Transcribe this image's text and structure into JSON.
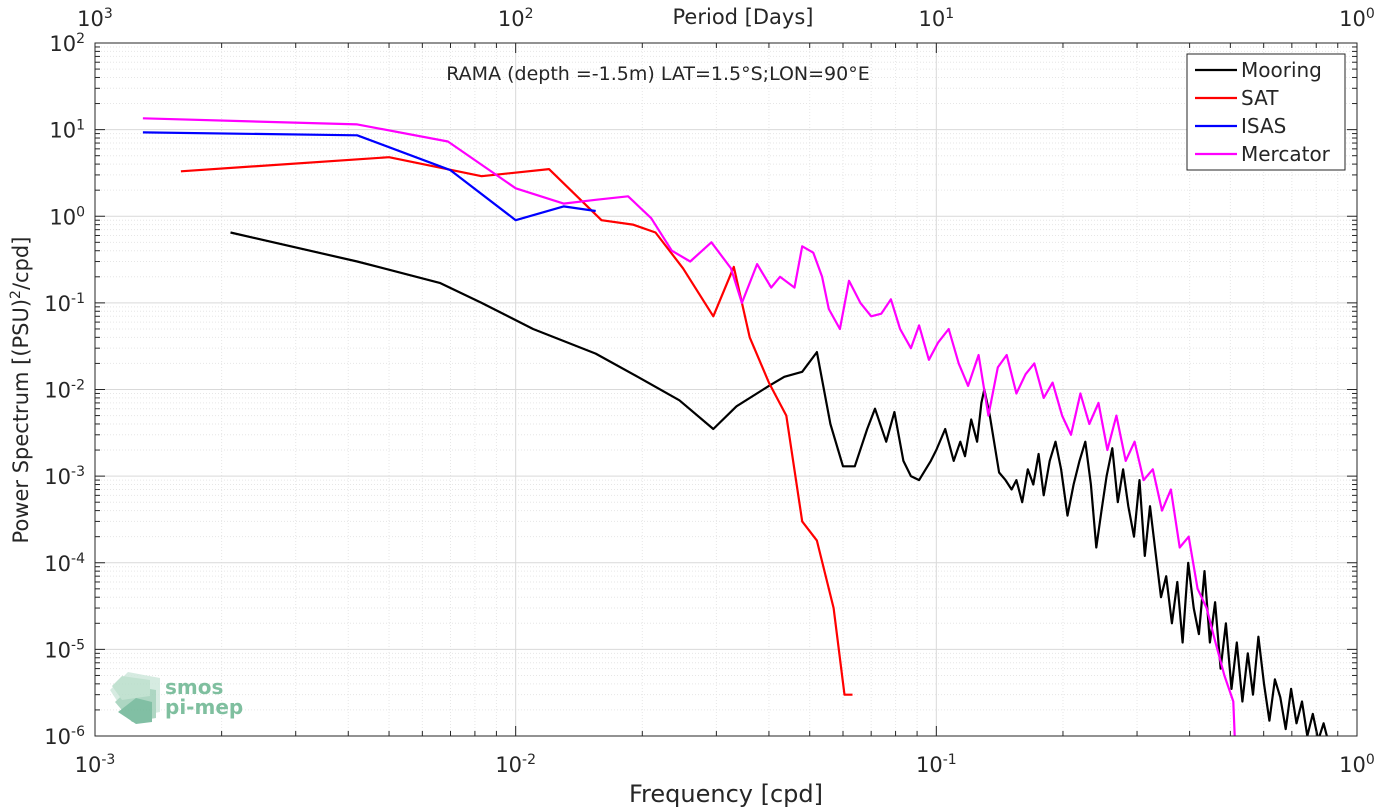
{
  "chart_data": {
    "type": "line",
    "title": "RAMA (depth =-1.5m) LAT=1.5°S;LON=90°E",
    "xlabel": "Frequency [cpd]",
    "ylabel": "Power Spectrum [(PSU)",
    "ylabel_sup": "2",
    "ylabel_suffix": "/cpd]",
    "top_xlabel": "Period [Days]",
    "xscale": "log",
    "yscale": "log",
    "xlim": [
      0.001,
      1
    ],
    "ylim": [
      1e-06,
      100
    ],
    "grid": true,
    "legend_position": "top-right",
    "x_ticks": [
      {
        "base": "10",
        "exp": "-3"
      },
      {
        "base": "10",
        "exp": "-2"
      },
      {
        "base": "10",
        "exp": "-1"
      },
      {
        "base": "10",
        "exp": "0"
      }
    ],
    "y_ticks": [
      {
        "base": "10",
        "exp": "-6"
      },
      {
        "base": "10",
        "exp": "-5"
      },
      {
        "base": "10",
        "exp": "-4"
      },
      {
        "base": "10",
        "exp": "-3"
      },
      {
        "base": "10",
        "exp": "-2"
      },
      {
        "base": "10",
        "exp": "-1"
      },
      {
        "base": "10",
        "exp": "0"
      },
      {
        "base": "10",
        "exp": "1"
      },
      {
        "base": "10",
        "exp": "2"
      }
    ],
    "top_ticks": [
      {
        "base": "10",
        "exp": "3"
      },
      {
        "base": "10",
        "exp": "2"
      },
      {
        "base": "10",
        "exp": "1"
      },
      {
        "base": "10",
        "exp": "0"
      }
    ],
    "series": [
      {
        "name": "Mooring",
        "color": "#000000",
        "x": [
          0.0021,
          0.0042,
          0.0066,
          0.0083,
          0.011,
          0.0155,
          0.0195,
          0.0245,
          0.0295,
          0.0335,
          0.04,
          0.0435,
          0.048,
          0.052,
          0.056,
          0.06,
          0.064,
          0.0685,
          0.0715,
          0.076,
          0.0795,
          0.0835,
          0.087,
          0.091,
          0.097,
          0.1,
          0.105,
          0.11,
          0.114,
          0.117,
          0.121,
          0.125,
          0.128,
          0.13,
          0.134,
          0.141,
          0.146,
          0.151,
          0.155,
          0.16,
          0.165,
          0.17,
          0.175,
          0.18,
          0.186,
          0.192,
          0.198,
          0.205,
          0.212,
          0.219,
          0.226,
          0.233,
          0.24,
          0.247,
          0.254,
          0.262,
          0.27,
          0.278,
          0.286,
          0.295,
          0.304,
          0.313,
          0.322,
          0.332,
          0.342,
          0.352,
          0.363,
          0.374,
          0.385,
          0.397,
          0.409,
          0.421,
          0.434,
          0.447,
          0.46,
          0.474,
          0.488,
          0.503,
          0.518,
          0.534,
          0.55,
          0.566,
          0.583,
          0.601,
          0.619,
          0.638,
          0.657,
          0.677,
          0.697,
          0.718,
          0.74,
          0.762,
          0.785,
          0.809,
          0.833,
          0.858,
          0.87
        ],
        "y": [
          0.65,
          0.3,
          0.17,
          0.1,
          0.05,
          0.026,
          0.014,
          0.0075,
          0.0035,
          0.0064,
          0.011,
          0.014,
          0.016,
          0.027,
          0.004,
          0.0013,
          0.0013,
          0.0035,
          0.006,
          0.0025,
          0.0055,
          0.0015,
          0.001,
          0.0009,
          0.0015,
          0.002,
          0.0035,
          0.0015,
          0.0025,
          0.0017,
          0.0045,
          0.0025,
          0.007,
          0.01,
          0.005,
          0.0011,
          0.0009,
          0.0007,
          0.0009,
          0.0005,
          0.0012,
          0.0008,
          0.0018,
          0.0006,
          0.0015,
          0.0025,
          0.0012,
          0.00035,
          0.0008,
          0.0015,
          0.0025,
          0.0008,
          0.00015,
          0.0004,
          0.001,
          0.0021,
          0.0005,
          0.0012,
          0.00045,
          0.0002,
          0.0009,
          0.00012,
          0.00045,
          0.00013,
          4e-05,
          7e-05,
          2e-05,
          6e-05,
          1.2e-05,
          0.0001,
          3e-05,
          1.5e-05,
          8e-05,
          1.2e-05,
          3.5e-05,
          6e-06,
          2e-05,
          3.5e-06,
          1.2e-05,
          2.5e-06,
          9e-06,
          3e-06,
          1.4e-05,
          4e-06,
          1.5e-06,
          4.5e-06,
          2.8e-06,
          1.2e-06,
          3.5e-06,
          1.4e-06,
          2.5e-06,
          1e-06,
          1.8e-06,
          9e-07,
          1.4e-06,
          8e-07,
          1e-06
        ]
      },
      {
        "name": "SAT",
        "color": "#ff0000",
        "x": [
          0.0016,
          0.005,
          0.0083,
          0.012,
          0.016,
          0.019,
          0.0215,
          0.025,
          0.0295,
          0.033,
          0.036,
          0.04,
          0.044,
          0.048,
          0.052,
          0.057,
          0.0605,
          0.0632
        ],
        "y": [
          3.3,
          4.8,
          2.9,
          3.5,
          0.9,
          0.8,
          0.65,
          0.25,
          0.07,
          0.26,
          0.04,
          0.012,
          0.005,
          0.0003,
          0.00018,
          3e-05,
          3e-06,
          3e-06
        ]
      },
      {
        "name": "ISAS",
        "color": "#0000ff",
        "x": [
          0.0013,
          0.0042,
          0.007,
          0.01,
          0.013,
          0.0155
        ],
        "y": [
          9.3,
          8.6,
          3.4,
          0.9,
          1.3,
          1.15
        ]
      },
      {
        "name": "Mercator",
        "color": "#ff00ff",
        "x": [
          0.0013,
          0.0042,
          0.0069,
          0.01,
          0.013,
          0.0155,
          0.0185,
          0.021,
          0.0235,
          0.026,
          0.0292,
          0.0325,
          0.0345,
          0.0375,
          0.0405,
          0.0425,
          0.046,
          0.048,
          0.051,
          0.0535,
          0.0555,
          0.059,
          0.062,
          0.066,
          0.07,
          0.074,
          0.078,
          0.082,
          0.087,
          0.091,
          0.096,
          0.101,
          0.107,
          0.113,
          0.119,
          0.126,
          0.133,
          0.14,
          0.147,
          0.155,
          0.163,
          0.171,
          0.18,
          0.189,
          0.199,
          0.209,
          0.22,
          0.231,
          0.243,
          0.255,
          0.268,
          0.282,
          0.296,
          0.311,
          0.327,
          0.344,
          0.361,
          0.379,
          0.398,
          0.418,
          0.439,
          0.461,
          0.484,
          0.508,
          0.512
        ],
        "y": [
          13.5,
          11.5,
          7.3,
          2.1,
          1.4,
          1.55,
          1.7,
          0.95,
          0.4,
          0.3,
          0.5,
          0.25,
          0.1,
          0.28,
          0.15,
          0.2,
          0.15,
          0.45,
          0.38,
          0.2,
          0.085,
          0.05,
          0.18,
          0.1,
          0.07,
          0.075,
          0.11,
          0.05,
          0.03,
          0.055,
          0.022,
          0.035,
          0.05,
          0.02,
          0.011,
          0.025,
          0.005,
          0.018,
          0.025,
          0.009,
          0.015,
          0.02,
          0.008,
          0.012,
          0.005,
          0.003,
          0.009,
          0.004,
          0.007,
          0.002,
          0.005,
          0.0015,
          0.0025,
          0.0009,
          0.0012,
          0.0004,
          0.0007,
          0.00015,
          0.0002,
          5e-05,
          3e-05,
          1.2e-05,
          5e-06,
          2.5e-06,
          1e-06
        ]
      }
    ]
  },
  "logo": {
    "line1": "smos",
    "line2": "pi-mep",
    "color": "#7fbf9f"
  }
}
